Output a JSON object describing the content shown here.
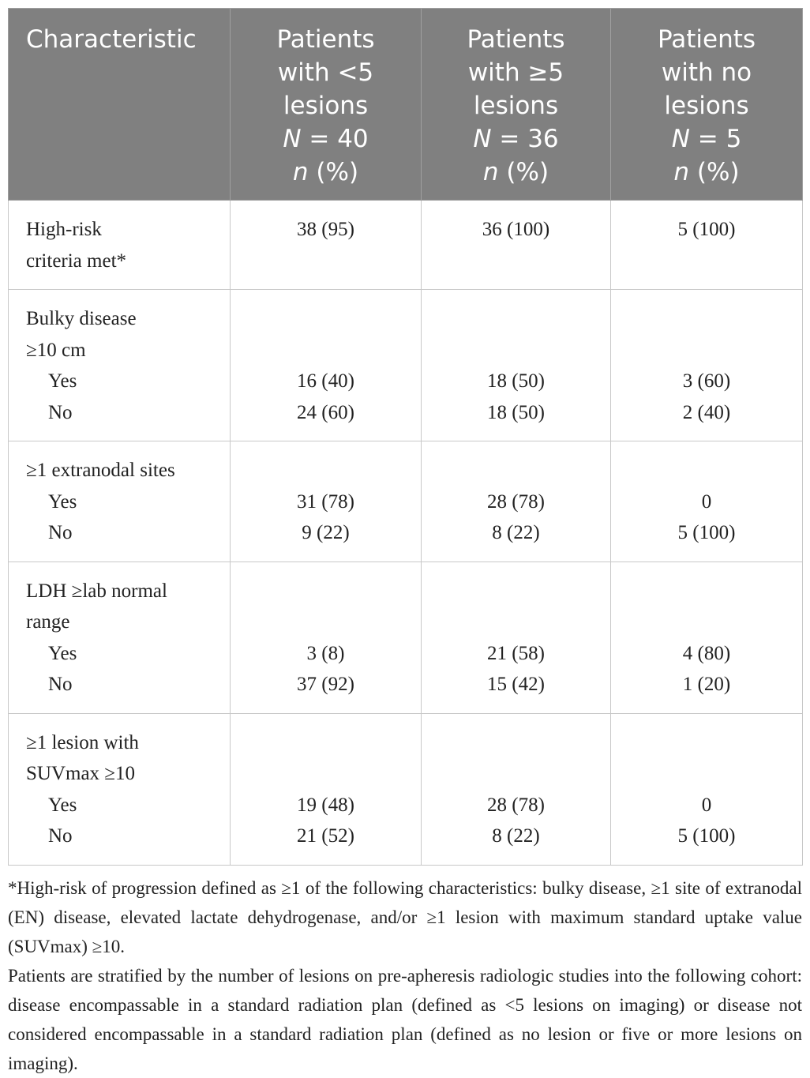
{
  "table": {
    "headers": [
      {
        "lines": [
          "Characteristic"
        ],
        "italic_lines": []
      },
      {
        "lines": [
          "Patients",
          "with <5",
          "lesions"
        ],
        "n_line_italic": "N",
        "n_line_rest": " = 40",
        "pct_italic": "n",
        "pct_rest": " (%)"
      },
      {
        "lines": [
          "Patients",
          "with ≥5",
          "lesions"
        ],
        "n_line_italic": "N",
        "n_line_rest": " = 36",
        "pct_italic": "n",
        "pct_rest": " (%)"
      },
      {
        "lines": [
          "Patients",
          "with no",
          "lesions"
        ],
        "n_line_italic": "N",
        "n_line_rest": " = 5",
        "pct_italic": "n",
        "pct_rest": " (%)"
      }
    ],
    "sections": [
      {
        "label_lines": [
          "High-risk",
          "criteria met*"
        ],
        "values": [
          "38 (95)",
          "36 (100)",
          "5 (100)"
        ],
        "rows": []
      },
      {
        "label_lines": [
          "Bulky disease",
          "≥10 cm"
        ],
        "rows": [
          {
            "label": "Yes",
            "values": [
              "16 (40)",
              "18 (50)",
              "3 (60)"
            ]
          },
          {
            "label": "No",
            "values": [
              "24 (60)",
              "18 (50)",
              "2 (40)"
            ]
          }
        ]
      },
      {
        "label_lines": [
          "≥1 extranodal sites"
        ],
        "rows": [
          {
            "label": "Yes",
            "values": [
              "31 (78)",
              "28 (78)",
              "0"
            ]
          },
          {
            "label": "No",
            "values": [
              "9 (22)",
              "8 (22)",
              "5 (100)"
            ]
          }
        ]
      },
      {
        "label_lines": [
          "LDH ≥lab normal",
          "range"
        ],
        "rows": [
          {
            "label": "Yes",
            "values": [
              "3 (8)",
              "21 (58)",
              "4 (80)"
            ]
          },
          {
            "label": "No",
            "values": [
              "37 (92)",
              "15 (42)",
              "1 (20)"
            ]
          }
        ]
      },
      {
        "label_lines": [
          "≥1 lesion with",
          "SUVmax ≥10"
        ],
        "rows": [
          {
            "label": "Yes",
            "values": [
              "19 (48)",
              "28 (78)",
              "0"
            ]
          },
          {
            "label": "No",
            "values": [
              "21 (52)",
              "8 (22)",
              "5 (100)"
            ]
          }
        ]
      }
    ]
  },
  "footnotes": [
    "*High-risk of progression defined as ≥1 of the following characteristics: bulky disease, ≥1 site of extranodal (EN) disease, elevated lactate dehydrogenase, and/or ≥1 lesion with maximum standard uptake value (SUVmax) ≥10.",
    "Patients are stratified by the number of lesions on pre-apheresis radiologic studies into the following cohort: disease encompassable in a standard radiation plan (defined as <5 lesions on imaging) or disease not considered encompassable in a standard radiation plan (defined as no lesion or five or more lesions on imaging)."
  ]
}
